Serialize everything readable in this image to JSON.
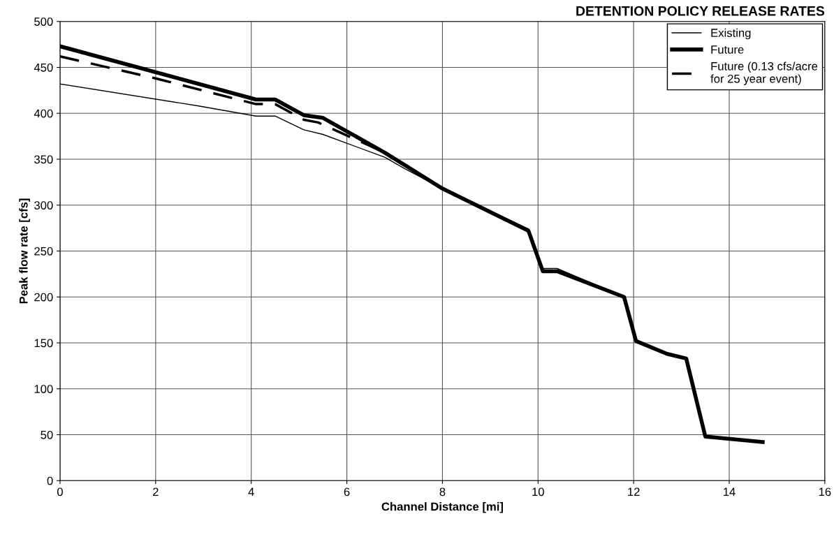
{
  "chart_data": {
    "type": "line",
    "title": "DETENTION POLICY RELEASE RATES",
    "xlabel": "Channel Distance [mi]",
    "ylabel": "Peak flow rate [cfs]",
    "xlim": [
      0,
      16
    ],
    "xticks": [
      0,
      2,
      4,
      6,
      8,
      10,
      12,
      14,
      16
    ],
    "ylim": [
      0,
      500
    ],
    "yticks": [
      0,
      50,
      100,
      150,
      200,
      250,
      300,
      350,
      400,
      450,
      500
    ],
    "grid": true,
    "legend": "top right",
    "marker": "none",
    "series": [
      {
        "name": "Existing",
        "color": "#000000",
        "line_style": "solid",
        "x": [
          0,
          2.9,
          4.1,
          4.5,
          5.1,
          5.5,
          6.8,
          7.2,
          8,
          9.8,
          10.1,
          10.4,
          11.8,
          12.05,
          12.7,
          13.1,
          13.5,
          14.7
        ],
        "values": [
          432,
          408,
          397,
          397,
          382,
          377,
          352,
          340,
          318,
          274,
          231,
          231,
          200,
          152,
          138,
          133,
          48,
          42
        ]
      },
      {
        "name": "Future",
        "color": "#000000",
        "line_style": "solid",
        "x": [
          0,
          4.1,
          4.5,
          5.1,
          5.5,
          6.8,
          8,
          9.8,
          10.1,
          10.4,
          11.8,
          12.05,
          12.7,
          13.1,
          13.5,
          14.7
        ],
        "values": [
          473,
          415,
          415,
          398,
          395,
          357,
          318,
          272,
          228,
          228,
          200,
          152,
          138,
          133,
          48,
          42
        ]
      },
      {
        "name": "Future (0.13 cfs/acre\nfor 25 year event)",
        "color": "#000000",
        "line_style": "dashed",
        "x": [
          0,
          2,
          4.1,
          4.5,
          5.1,
          5.4,
          6.8,
          8,
          9.8,
          10.1,
          10.4,
          11.8,
          12.05,
          12.7,
          13.1,
          13.5,
          14.7
        ],
        "values": [
          462,
          438,
          410,
          410,
          393,
          390,
          357,
          318,
          272,
          228,
          228,
          200,
          152,
          138,
          133,
          48,
          42
        ]
      }
    ]
  }
}
